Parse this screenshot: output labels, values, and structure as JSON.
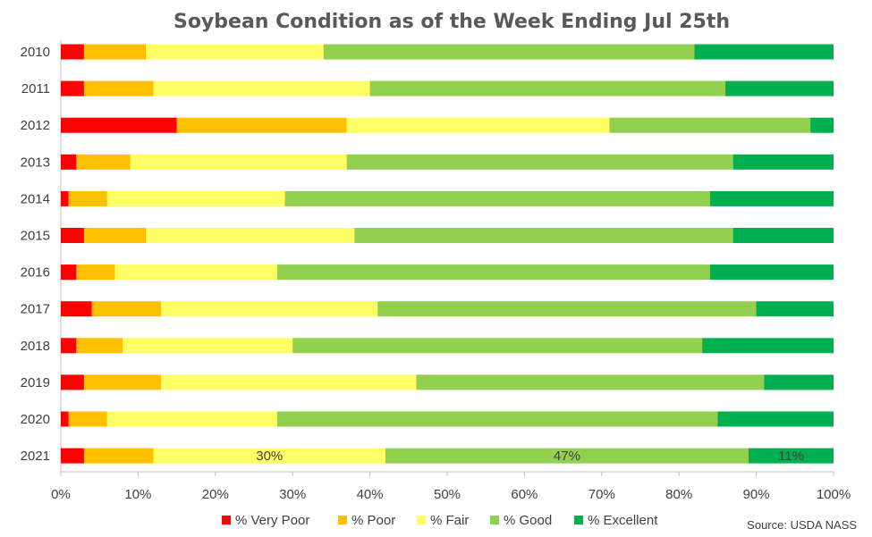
{
  "chart_data": {
    "type": "bar",
    "orientation": "horizontal",
    "stacked": "percent",
    "title": "Soybean Condition as of the Week Ending Jul 25th",
    "categories": [
      "2010",
      "2011",
      "2012",
      "2013",
      "2014",
      "2015",
      "2016",
      "2017",
      "2018",
      "2019",
      "2020",
      "2021"
    ],
    "series": [
      {
        "name": "% Very Poor",
        "color": "#ff0000",
        "values": [
          3,
          3,
          15,
          2,
          1,
          3,
          2,
          4,
          2,
          3,
          1,
          3
        ]
      },
      {
        "name": "% Poor",
        "color": "#ffc000",
        "values": [
          8,
          9,
          22,
          7,
          5,
          8,
          5,
          9,
          6,
          10,
          5,
          9
        ]
      },
      {
        "name": "% Fair",
        "color": "#ffff66",
        "values": [
          23,
          28,
          34,
          28,
          23,
          27,
          21,
          28,
          22,
          33,
          22,
          30
        ]
      },
      {
        "name": "% Good",
        "color": "#92d050",
        "values": [
          48,
          46,
          26,
          50,
          55,
          49,
          56,
          49,
          53,
          45,
          57,
          47
        ]
      },
      {
        "name": "% Excellent",
        "color": "#00b050",
        "values": [
          18,
          14,
          3,
          13,
          16,
          13,
          16,
          10,
          17,
          9,
          15,
          11
        ]
      }
    ],
    "xlim": [
      0,
      100
    ],
    "xticks": [
      "0%",
      "10%",
      "20%",
      "30%",
      "40%",
      "50%",
      "60%",
      "70%",
      "80%",
      "90%",
      "100%"
    ],
    "data_labels": [
      {
        "category": "2021",
        "series": "% Fair",
        "text": "30%"
      },
      {
        "category": "2021",
        "series": "% Good",
        "text": "47%"
      },
      {
        "category": "2021",
        "series": "% Excellent",
        "text": "11%"
      }
    ],
    "legend": "bottom",
    "grid": false,
    "source": "Source: USDA NASS"
  }
}
